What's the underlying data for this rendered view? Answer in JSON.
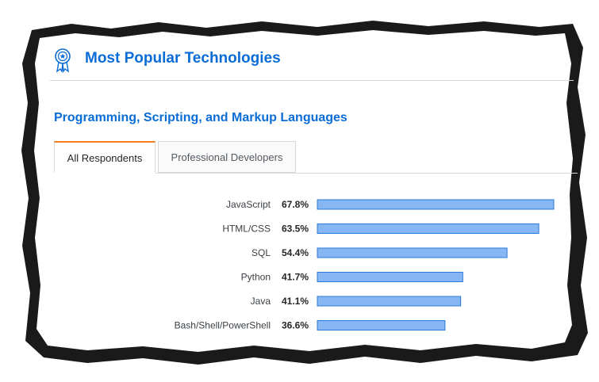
{
  "header": {
    "title": "Most Popular Technologies",
    "icon": "award-ribbon-icon",
    "accent_color": "#0a6cd6"
  },
  "section": {
    "title": "Programming, Scripting, and Markup Languages"
  },
  "tabs": [
    {
      "label": "All Respondents",
      "active": true
    },
    {
      "label": "Professional Developers",
      "active": false
    }
  ],
  "chart_data": {
    "type": "bar",
    "orientation": "horizontal",
    "categories": [
      "JavaScript",
      "HTML/CSS",
      "SQL",
      "Python",
      "Java",
      "Bash/Shell/PowerShell"
    ],
    "values": [
      67.8,
      63.5,
      54.4,
      41.7,
      41.1,
      36.6
    ],
    "value_labels": [
      "67.8%",
      "63.5%",
      "54.4%",
      "41.7%",
      "41.1%",
      "36.6%"
    ],
    "bar_color": "#86b6f3",
    "bar_border_color": "#2c7ad6",
    "grid": false,
    "xlim": [
      0,
      67.8
    ]
  }
}
